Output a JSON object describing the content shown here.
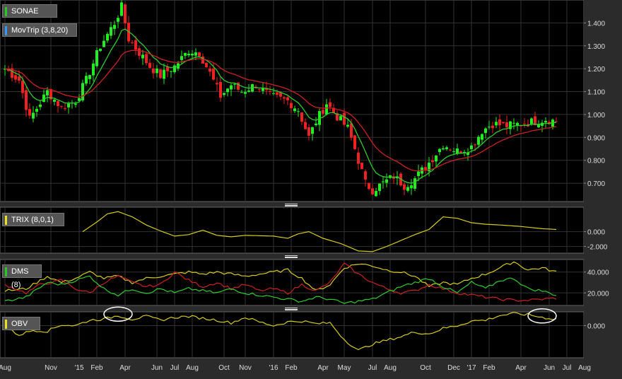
{
  "chart_data": [
    {
      "id": "price",
      "type": "candlestick",
      "label": "SONAE",
      "label_color": "#22cc22",
      "overlay": {
        "label": "MovTrip (3,8,20)",
        "label_color": "#3399ff",
        "series": [
          {
            "color": "#2ecc2e"
          },
          {
            "color": "#cc2222"
          }
        ]
      },
      "ylim": [
        0.62,
        1.5
      ],
      "y_ticks": [
        "1.400",
        "1.300",
        "1.200",
        "1.100",
        "1.000",
        "0.900",
        "0.800",
        "0.700"
      ],
      "y_tick_values": [
        1.4,
        1.3,
        1.2,
        1.1,
        1.0,
        0.9,
        0.8,
        0.7
      ],
      "close_anchors": [
        [
          0,
          1.2
        ],
        [
          4,
          1.15
        ],
        [
          7,
          0.98
        ],
        [
          12,
          1.1
        ],
        [
          16,
          1.03
        ],
        [
          20,
          1.06
        ],
        [
          23,
          1.15
        ],
        [
          27,
          1.3
        ],
        [
          31,
          1.4
        ],
        [
          33,
          1.47
        ],
        [
          35,
          1.33
        ],
        [
          37,
          1.29
        ],
        [
          41,
          1.21
        ],
        [
          44,
          1.17
        ],
        [
          48,
          1.21
        ],
        [
          52,
          1.28
        ],
        [
          55,
          1.27
        ],
        [
          58,
          1.18
        ],
        [
          61,
          1.08
        ],
        [
          64,
          1.13
        ],
        [
          67,
          1.1
        ],
        [
          71,
          1.13
        ],
        [
          75,
          1.08
        ],
        [
          80,
          1.06
        ],
        [
          83,
          1.02
        ],
        [
          86,
          0.9
        ],
        [
          88,
          0.97
        ],
        [
          91,
          1.05
        ],
        [
          94,
          0.99
        ],
        [
          97,
          0.94
        ],
        [
          99,
          0.85
        ],
        [
          102,
          0.7
        ],
        [
          104,
          0.67
        ],
        [
          107,
          0.7
        ],
        [
          110,
          0.73
        ],
        [
          113,
          0.69
        ],
        [
          116,
          0.72
        ],
        [
          120,
          0.79
        ],
        [
          124,
          0.87
        ],
        [
          128,
          0.84
        ],
        [
          132,
          0.86
        ],
        [
          135,
          0.93
        ],
        [
          138,
          0.96
        ],
        [
          142,
          0.95
        ],
        [
          146,
          0.96
        ],
        [
          150,
          0.97
        ],
        [
          153,
          0.98
        ],
        [
          156,
          0.97
        ]
      ],
      "candle_count": 157
    },
    {
      "id": "trix",
      "type": "line",
      "label": "TRIX (8,0,1)",
      "label_color": "#e8e020",
      "ylim": [
        -2.9,
        3.3
      ],
      "y_ticks": [
        "0.000",
        "-2.000"
      ],
      "y_tick_values": [
        0,
        -2
      ],
      "series": [
        {
          "color": "#d6cc1e",
          "x_start": 22,
          "anchors": [
            [
              22,
              0.0
            ],
            [
              26,
              1.3
            ],
            [
              29,
              2.4
            ],
            [
              32,
              2.7
            ],
            [
              36,
              2.0
            ],
            [
              40,
              0.9
            ],
            [
              44,
              0.1
            ],
            [
              48,
              -0.6
            ],
            [
              52,
              -0.4
            ],
            [
              56,
              0.2
            ],
            [
              60,
              -0.5
            ],
            [
              64,
              -0.7
            ],
            [
              68,
              -0.5
            ],
            [
              72,
              -0.55
            ],
            [
              76,
              -0.6
            ],
            [
              80,
              -0.9
            ],
            [
              83,
              -0.3
            ],
            [
              86,
              0.0
            ],
            [
              90,
              -0.9
            ],
            [
              95,
              -1.6
            ],
            [
              100,
              -2.6
            ],
            [
              104,
              -2.7
            ],
            [
              108,
              -2.0
            ],
            [
              112,
              -1.2
            ],
            [
              116,
              -0.4
            ],
            [
              120,
              0.3
            ],
            [
              124,
              2.0
            ],
            [
              128,
              1.8
            ],
            [
              132,
              1.2
            ],
            [
              136,
              1.0
            ],
            [
              140,
              0.9
            ],
            [
              146,
              0.7
            ],
            [
              152,
              0.4
            ],
            [
              156,
              0.3
            ]
          ]
        }
      ]
    },
    {
      "id": "dms",
      "type": "line",
      "label": "DMS (8)",
      "label_color": "#22cc22",
      "ylim": [
        8,
        52
      ],
      "y_ticks": [
        "40.000",
        "20.000"
      ],
      "y_tick_values": [
        40,
        20
      ],
      "series": [
        {
          "color": "#d6cc1e",
          "anchors": [
            [
              0,
              22
            ],
            [
              6,
              24
            ],
            [
              12,
              36
            ],
            [
              16,
              30
            ],
            [
              20,
              34
            ],
            [
              24,
              40
            ],
            [
              28,
              34
            ],
            [
              32,
              36
            ],
            [
              36,
              30
            ],
            [
              40,
              34
            ],
            [
              44,
              36
            ],
            [
              48,
              38
            ],
            [
              52,
              40
            ],
            [
              56,
              38
            ],
            [
              60,
              40
            ],
            [
              64,
              38
            ],
            [
              68,
              36
            ],
            [
              72,
              38
            ],
            [
              76,
              40
            ],
            [
              80,
              42
            ],
            [
              84,
              34
            ],
            [
              88,
              22
            ],
            [
              92,
              28
            ],
            [
              96,
              44
            ],
            [
              100,
              48
            ],
            [
              104,
              46
            ],
            [
              108,
              42
            ],
            [
              112,
              40
            ],
            [
              116,
              36
            ],
            [
              120,
              26
            ],
            [
              124,
              30
            ],
            [
              128,
              28
            ],
            [
              132,
              34
            ],
            [
              136,
              38
            ],
            [
              140,
              44
            ],
            [
              144,
              50
            ],
            [
              148,
              42
            ],
            [
              152,
              44
            ],
            [
              156,
              40
            ]
          ]
        },
        {
          "color": "#cc2222",
          "anchors": [
            [
              0,
              28
            ],
            [
              6,
              20
            ],
            [
              10,
              28
            ],
            [
              16,
              32
            ],
            [
              20,
              24
            ],
            [
              24,
              20
            ],
            [
              28,
              30
            ],
            [
              32,
              36
            ],
            [
              36,
              30
            ],
            [
              40,
              26
            ],
            [
              44,
              28
            ],
            [
              48,
              40
            ],
            [
              52,
              32
            ],
            [
              56,
              26
            ],
            [
              60,
              30
            ],
            [
              64,
              24
            ],
            [
              68,
              28
            ],
            [
              72,
              22
            ],
            [
              76,
              24
            ],
            [
              80,
              20
            ],
            [
              84,
              28
            ],
            [
              88,
              22
            ],
            [
              92,
              30
            ],
            [
              96,
              48
            ],
            [
              100,
              38
            ],
            [
              104,
              30
            ],
            [
              108,
              24
            ],
            [
              112,
              20
            ],
            [
              116,
              22
            ],
            [
              120,
              28
            ],
            [
              124,
              24
            ],
            [
              128,
              20
            ],
            [
              132,
              18
            ],
            [
              136,
              16
            ],
            [
              140,
              14
            ],
            [
              144,
              13
            ],
            [
              148,
              13
            ],
            [
              152,
              14
            ],
            [
              156,
              15
            ]
          ]
        },
        {
          "color": "#2ecc2e",
          "anchors": [
            [
              0,
              12
            ],
            [
              6,
              16
            ],
            [
              12,
              30
            ],
            [
              16,
              28
            ],
            [
              20,
              32
            ],
            [
              24,
              36
            ],
            [
              28,
              24
            ],
            [
              32,
              18
            ],
            [
              36,
              24
            ],
            [
              40,
              20
            ],
            [
              44,
              24
            ],
            [
              48,
              20
            ],
            [
              52,
              24
            ],
            [
              56,
              22
            ],
            [
              60,
              20
            ],
            [
              64,
              24
            ],
            [
              68,
              20
            ],
            [
              72,
              18
            ],
            [
              76,
              16
            ],
            [
              80,
              14
            ],
            [
              84,
              12
            ],
            [
              88,
              16
            ],
            [
              92,
              14
            ],
            [
              96,
              10
            ],
            [
              100,
              12
            ],
            [
              104,
              14
            ],
            [
              108,
              20
            ],
            [
              112,
              26
            ],
            [
              116,
              30
            ],
            [
              120,
              34
            ],
            [
              124,
              26
            ],
            [
              128,
              20
            ],
            [
              132,
              30
            ],
            [
              136,
              24
            ],
            [
              140,
              32
            ],
            [
              144,
              34
            ],
            [
              148,
              24
            ],
            [
              152,
              22
            ],
            [
              156,
              18
            ]
          ]
        }
      ]
    },
    {
      "id": "obv",
      "type": "line",
      "label": "OBV",
      "label_color": "#e8e020",
      "ylim": [
        -3.5,
        1.5
      ],
      "y_ticks": [
        "0.000"
      ],
      "y_tick_values": [
        0
      ],
      "series": [
        {
          "color": "#d6cc1e",
          "anchors": [
            [
              0,
              -0.2
            ],
            [
              4,
              -1.0
            ],
            [
              8,
              -0.5
            ],
            [
              12,
              -0.6
            ],
            [
              16,
              0.1
            ],
            [
              20,
              0.0
            ],
            [
              24,
              0.6
            ],
            [
              28,
              0.7
            ],
            [
              32,
              1.1
            ],
            [
              36,
              0.7
            ],
            [
              40,
              1.0
            ],
            [
              44,
              0.6
            ],
            [
              48,
              0.9
            ],
            [
              52,
              1.0
            ],
            [
              56,
              0.8
            ],
            [
              60,
              0.6
            ],
            [
              64,
              0.3
            ],
            [
              68,
              0.9
            ],
            [
              72,
              0.4
            ],
            [
              76,
              0.0
            ],
            [
              80,
              0.4
            ],
            [
              84,
              0.5
            ],
            [
              88,
              0.2
            ],
            [
              92,
              0.3
            ],
            [
              96,
              -1.5
            ],
            [
              100,
              -2.7
            ],
            [
              104,
              -2.0
            ],
            [
              108,
              -1.6
            ],
            [
              112,
              -1.2
            ],
            [
              116,
              -0.7
            ],
            [
              120,
              -0.9
            ],
            [
              124,
              -0.3
            ],
            [
              128,
              0.0
            ],
            [
              132,
              0.5
            ],
            [
              136,
              0.6
            ],
            [
              140,
              1.1
            ],
            [
              144,
              1.3
            ],
            [
              148,
              1.2
            ],
            [
              152,
              0.9
            ],
            [
              156,
              0.7
            ]
          ]
        }
      ],
      "highlights": [
        {
          "x": 32
        },
        {
          "x": 152
        }
      ]
    }
  ],
  "x_axis": {
    "labels": [
      {
        "text": "Aug",
        "i": 0
      },
      {
        "text": "Nov",
        "i": 13
      },
      {
        "text": "'15",
        "i": 21
      },
      {
        "text": "Feb",
        "i": 26
      },
      {
        "text": "Apr",
        "i": 34
      },
      {
        "text": "Jun",
        "i": 43
      },
      {
        "text": "Jul",
        "i": 48
      },
      {
        "text": "Aug",
        "i": 53
      },
      {
        "text": "Oct",
        "i": 62
      },
      {
        "text": "Nov",
        "i": 68
      },
      {
        "text": "'16",
        "i": 76
      },
      {
        "text": "Feb",
        "i": 81
      },
      {
        "text": "Apr",
        "i": 90
      },
      {
        "text": "May",
        "i": 96
      },
      {
        "text": "Jul",
        "i": 104
      },
      {
        "text": "Aug",
        "i": 109
      },
      {
        "text": "Oct",
        "i": 119
      },
      {
        "text": "Dec",
        "i": 127
      },
      {
        "text": "'17",
        "i": 132
      },
      {
        "text": "Feb",
        "i": 137
      },
      {
        "text": "Apr",
        "i": 146
      },
      {
        "text": "Jun",
        "i": 154
      },
      {
        "text": "Jul",
        "i": 159
      },
      {
        "text": "Aug",
        "i": 164
      }
    ]
  }
}
